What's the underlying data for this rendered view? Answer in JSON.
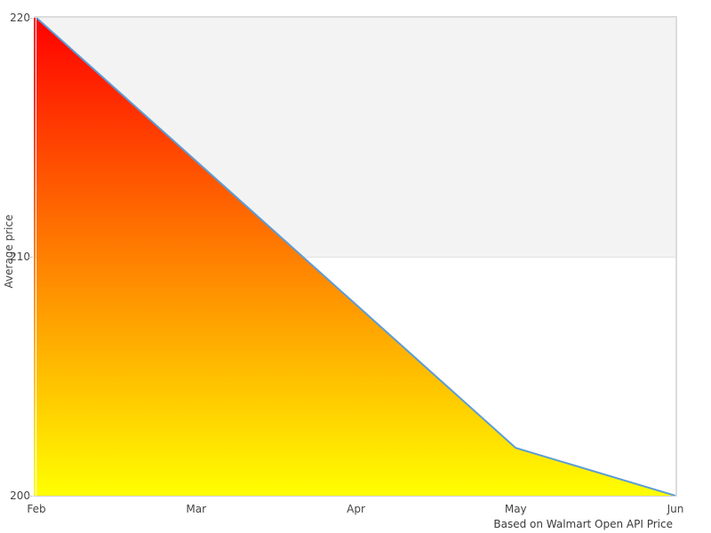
{
  "chart": {
    "y_axis": {
      "title": "Average price",
      "tick_labels": [
        "220",
        "210",
        "200"
      ]
    },
    "x_axis": {
      "tick_labels": [
        "Feb",
        "Mar",
        "Apr",
        "May",
        "Jun"
      ]
    },
    "caption": "Based on Walmart Open API Price",
    "colors": {
      "line": "#5b9cd6",
      "gradient_top": "#ff0000",
      "gradient_bottom": "#ffff00",
      "band_fill": "#f3f3f3",
      "band_edge_line": "#e2e2e2",
      "plot_border": "#dcdcdc",
      "tick_mark": "#c9c9c9",
      "text": "#444444"
    }
  },
  "chart_data": {
    "type": "area",
    "categories": [
      "Feb",
      "Mar",
      "Apr",
      "May",
      "Jun"
    ],
    "values": [
      220,
      214,
      208,
      202,
      200
    ],
    "title": "",
    "xlabel": "",
    "ylabel": "Average price",
    "ylim": [
      200,
      220
    ],
    "y_ticks": [
      220,
      210,
      200
    ],
    "grid_band": {
      "from": 210,
      "to": 220,
      "color": "#f3f3f3"
    },
    "caption": "Based on Walmart Open API Price",
    "legend": "none",
    "style_notes": "area filled with vertical gradient red(top) to yellow(bottom), light blue top line, gray band between 210 and 220"
  }
}
